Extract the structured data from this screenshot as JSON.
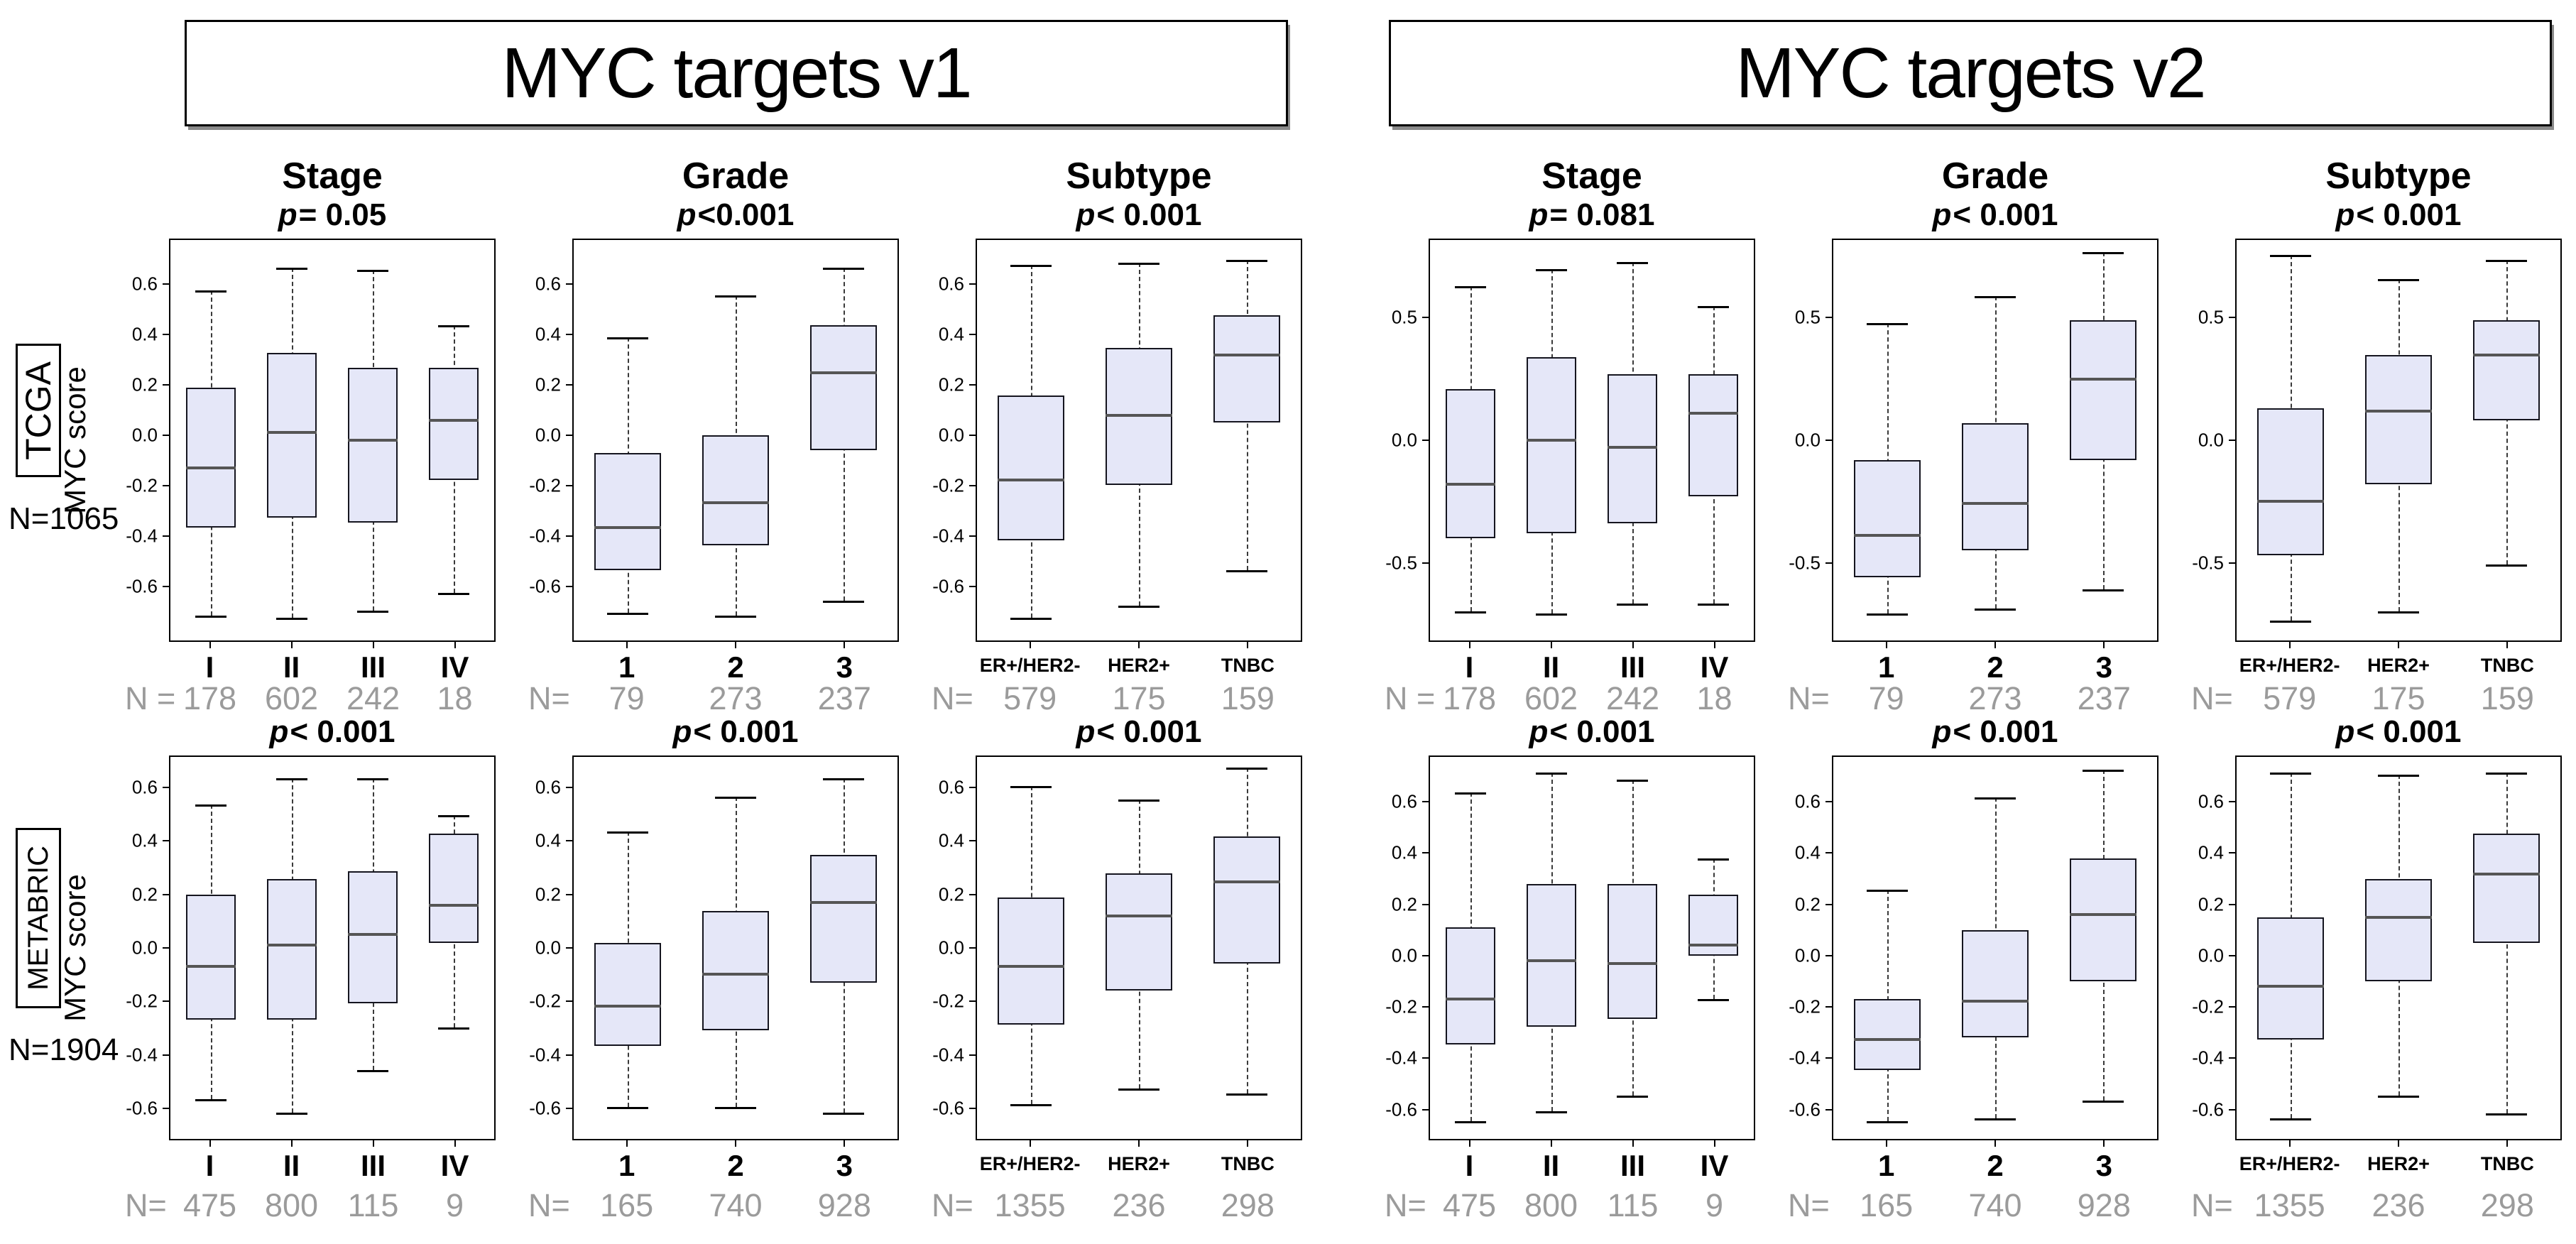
{
  "titles": {
    "v1": "MYC targets v1",
    "v2": "MYC targets v2"
  },
  "column_headers": [
    "Stage",
    "Grade",
    "Subtype",
    "Stage",
    "Grade",
    "Subtype"
  ],
  "rows": [
    {
      "cohort": "TCGA",
      "n_label": "N=1065",
      "ylabel": "MYC score"
    },
    {
      "cohort": "METABRIC",
      "n_label": "N=1904",
      "ylabel": "MYC score"
    }
  ],
  "colors": {
    "box_fill": "#e5e7f8",
    "box_border": "#15151f",
    "median": "#555555",
    "whisker": "#3a3a3a",
    "sample_size_text": "#9b9b9b",
    "text": "#000000"
  },
  "chart_data": [
    {
      "type": "box",
      "cohort": "TCGA",
      "gene_set": "MYC targets v1",
      "variable": "Stage",
      "p_label": "p = 0.05",
      "categories": [
        "I",
        "II",
        "III",
        "IV"
      ],
      "n_prefix": "N =",
      "n_values": [
        178,
        602,
        242,
        18
      ],
      "yticks": [
        "0.6",
        "0.4",
        "0.2",
        "0.0",
        "-0.2",
        "-0.4",
        "-0.6"
      ],
      "ylim": [
        -0.82,
        0.78
      ],
      "boxes": [
        {
          "lo": -0.72,
          "q1": -0.37,
          "med": -0.13,
          "q3": 0.19,
          "hi": 0.58
        },
        {
          "lo": -0.73,
          "q1": -0.33,
          "med": 0.01,
          "q3": 0.33,
          "hi": 0.67
        },
        {
          "lo": -0.7,
          "q1": -0.35,
          "med": -0.02,
          "q3": 0.27,
          "hi": 0.66
        },
        {
          "lo": -0.63,
          "q1": -0.18,
          "med": 0.06,
          "q3": 0.27,
          "hi": 0.44
        }
      ]
    },
    {
      "type": "box",
      "cohort": "TCGA",
      "gene_set": "MYC targets v1",
      "variable": "Grade",
      "p_label": "p<0.001",
      "categories": [
        "1",
        "2",
        "3"
      ],
      "n_prefix": "N=",
      "n_values": [
        79,
        273,
        237
      ],
      "yticks": [
        "0.6",
        "0.4",
        "0.2",
        "0.0",
        "-0.2",
        "-0.4",
        "-0.6"
      ],
      "ylim": [
        -0.82,
        0.78
      ],
      "boxes": [
        {
          "lo": -0.71,
          "q1": -0.54,
          "med": -0.37,
          "q3": -0.07,
          "hi": 0.39
        },
        {
          "lo": -0.72,
          "q1": -0.44,
          "med": -0.27,
          "q3": 0.0,
          "hi": 0.56
        },
        {
          "lo": -0.66,
          "q1": -0.06,
          "med": 0.25,
          "q3": 0.44,
          "hi": 0.67
        }
      ]
    },
    {
      "type": "box",
      "cohort": "TCGA",
      "gene_set": "MYC targets v1",
      "variable": "Subtype",
      "p_label": "p < 0.001",
      "categories": [
        "ER+/HER2-",
        "HER2+",
        "TNBC"
      ],
      "n_prefix": "N=",
      "n_values": [
        579,
        175,
        159
      ],
      "yticks": [
        "0.6",
        "0.4",
        "0.2",
        "0.0",
        "-0.2",
        "-0.4",
        "-0.6"
      ],
      "ylim": [
        -0.82,
        0.78
      ],
      "boxes": [
        {
          "lo": -0.73,
          "q1": -0.42,
          "med": -0.18,
          "q3": 0.16,
          "hi": 0.68
        },
        {
          "lo": -0.68,
          "q1": -0.2,
          "med": 0.08,
          "q3": 0.35,
          "hi": 0.69
        },
        {
          "lo": -0.54,
          "q1": 0.05,
          "med": 0.32,
          "q3": 0.48,
          "hi": 0.7
        }
      ]
    },
    {
      "type": "box",
      "cohort": "TCGA",
      "gene_set": "MYC targets v2",
      "variable": "Stage",
      "p_label": "p = 0.081",
      "categories": [
        "I",
        "II",
        "III",
        "IV"
      ],
      "n_prefix": "N =",
      "n_values": [
        178,
        602,
        242,
        18
      ],
      "yticks": [
        "0.5",
        "0.0",
        "-0.5"
      ],
      "ylim": [
        -0.82,
        0.82
      ],
      "boxes": [
        {
          "lo": -0.7,
          "q1": -0.4,
          "med": -0.18,
          "q3": 0.21,
          "hi": 0.63
        },
        {
          "lo": -0.71,
          "q1": -0.38,
          "med": 0.0,
          "q3": 0.34,
          "hi": 0.7
        },
        {
          "lo": -0.67,
          "q1": -0.34,
          "med": -0.03,
          "q3": 0.27,
          "hi": 0.73
        },
        {
          "lo": -0.67,
          "q1": -0.23,
          "med": 0.11,
          "q3": 0.27,
          "hi": 0.55
        }
      ]
    },
    {
      "type": "box",
      "cohort": "TCGA",
      "gene_set": "MYC targets v2",
      "variable": "Grade",
      "p_label": "p < 0.001",
      "categories": [
        "1",
        "2",
        "3"
      ],
      "n_prefix": "N=",
      "n_values": [
        79,
        273,
        237
      ],
      "yticks": [
        "0.5",
        "0.0",
        "-0.5"
      ],
      "ylim": [
        -0.82,
        0.82
      ],
      "boxes": [
        {
          "lo": -0.71,
          "q1": -0.56,
          "med": -0.39,
          "q3": -0.08,
          "hi": 0.48
        },
        {
          "lo": -0.69,
          "q1": -0.45,
          "med": -0.26,
          "q3": 0.07,
          "hi": 0.59
        },
        {
          "lo": -0.61,
          "q1": -0.08,
          "med": 0.25,
          "q3": 0.49,
          "hi": 0.77
        }
      ]
    },
    {
      "type": "box",
      "cohort": "TCGA",
      "gene_set": "MYC targets v2",
      "variable": "Subtype",
      "p_label": "p < 0.001",
      "categories": [
        "ER+/HER2-",
        "HER2+",
        "TNBC"
      ],
      "n_prefix": "N=",
      "n_values": [
        579,
        175,
        159
      ],
      "yticks": [
        "0.5",
        "0.0",
        "-0.5"
      ],
      "ylim": [
        -0.82,
        0.82
      ],
      "boxes": [
        {
          "lo": -0.74,
          "q1": -0.47,
          "med": -0.25,
          "q3": 0.13,
          "hi": 0.76
        },
        {
          "lo": -0.7,
          "q1": -0.18,
          "med": 0.12,
          "q3": 0.35,
          "hi": 0.66
        },
        {
          "lo": -0.51,
          "q1": 0.08,
          "med": 0.35,
          "q3": 0.49,
          "hi": 0.74
        }
      ]
    },
    {
      "type": "box",
      "cohort": "METABRIC",
      "gene_set": "MYC targets v1",
      "variable": "Stage",
      "p_label": "p < 0.001",
      "categories": [
        "I",
        "II",
        "III",
        "IV"
      ],
      "n_prefix": "N=",
      "n_values": [
        475,
        800,
        115,
        9
      ],
      "yticks": [
        "0.6",
        "0.4",
        "0.2",
        "0.0",
        "-0.2",
        "-0.4",
        "-0.6"
      ],
      "ylim": [
        -0.72,
        0.72
      ],
      "boxes": [
        {
          "lo": -0.57,
          "q1": -0.27,
          "med": -0.07,
          "q3": 0.2,
          "hi": 0.54
        },
        {
          "lo": -0.62,
          "q1": -0.27,
          "med": 0.01,
          "q3": 0.26,
          "hi": 0.64
        },
        {
          "lo": -0.46,
          "q1": -0.21,
          "med": 0.05,
          "q3": 0.29,
          "hi": 0.64
        },
        {
          "lo": -0.3,
          "q1": 0.02,
          "med": 0.16,
          "q3": 0.43,
          "hi": 0.5
        }
      ]
    },
    {
      "type": "box",
      "cohort": "METABRIC",
      "gene_set": "MYC targets v1",
      "variable": "Grade",
      "p_label": "p < 0.001",
      "categories": [
        "1",
        "2",
        "3"
      ],
      "n_prefix": "N=",
      "n_values": [
        165,
        740,
        928
      ],
      "yticks": [
        "0.6",
        "0.4",
        "0.2",
        "0.0",
        "-0.2",
        "-0.4",
        "-0.6"
      ],
      "ylim": [
        -0.72,
        0.72
      ],
      "boxes": [
        {
          "lo": -0.6,
          "q1": -0.37,
          "med": -0.22,
          "q3": 0.02,
          "hi": 0.44
        },
        {
          "lo": -0.6,
          "q1": -0.31,
          "med": -0.1,
          "q3": 0.14,
          "hi": 0.57
        },
        {
          "lo": -0.62,
          "q1": -0.13,
          "med": 0.17,
          "q3": 0.35,
          "hi": 0.64
        }
      ]
    },
    {
      "type": "box",
      "cohort": "METABRIC",
      "gene_set": "MYC targets v1",
      "variable": "Subtype",
      "p_label": "p < 0.001",
      "categories": [
        "ER+/HER2-",
        "HER2+",
        "TNBC"
      ],
      "n_prefix": "N=",
      "n_values": [
        1355,
        236,
        298
      ],
      "yticks": [
        "0.6",
        "0.4",
        "0.2",
        "0.0",
        "-0.2",
        "-0.4",
        "-0.6"
      ],
      "ylim": [
        -0.72,
        0.72
      ],
      "boxes": [
        {
          "lo": -0.59,
          "q1": -0.29,
          "med": -0.07,
          "q3": 0.19,
          "hi": 0.61
        },
        {
          "lo": -0.53,
          "q1": -0.16,
          "med": 0.12,
          "q3": 0.28,
          "hi": 0.56
        },
        {
          "lo": -0.55,
          "q1": -0.06,
          "med": 0.25,
          "q3": 0.42,
          "hi": 0.68
        }
      ]
    },
    {
      "type": "box",
      "cohort": "METABRIC",
      "gene_set": "MYC targets v2",
      "variable": "Stage",
      "p_label": "p < 0.001",
      "categories": [
        "I",
        "II",
        "III",
        "IV"
      ],
      "n_prefix": "N=",
      "n_values": [
        475,
        800,
        115,
        9
      ],
      "yticks": [
        "0.6",
        "0.4",
        "0.2",
        "0.0",
        "-0.2",
        "-0.4",
        "-0.6"
      ],
      "ylim": [
        -0.72,
        0.78
      ],
      "boxes": [
        {
          "lo": -0.65,
          "q1": -0.35,
          "med": -0.17,
          "q3": 0.11,
          "hi": 0.64
        },
        {
          "lo": -0.61,
          "q1": -0.28,
          "med": -0.02,
          "q3": 0.28,
          "hi": 0.72
        },
        {
          "lo": -0.55,
          "q1": -0.25,
          "med": -0.03,
          "q3": 0.28,
          "hi": 0.69
        },
        {
          "lo": -0.17,
          "q1": 0.0,
          "med": 0.04,
          "q3": 0.24,
          "hi": 0.38
        }
      ]
    },
    {
      "type": "box",
      "cohort": "METABRIC",
      "gene_set": "MYC targets v2",
      "variable": "Grade",
      "p_label": "p < 0.001",
      "categories": [
        "1",
        "2",
        "3"
      ],
      "n_prefix": "N=",
      "n_values": [
        165,
        740,
        928
      ],
      "yticks": [
        "0.6",
        "0.4",
        "0.2",
        "0.0",
        "-0.2",
        "-0.4",
        "-0.6"
      ],
      "ylim": [
        -0.72,
        0.78
      ],
      "boxes": [
        {
          "lo": -0.65,
          "q1": -0.45,
          "med": -0.33,
          "q3": -0.17,
          "hi": 0.26
        },
        {
          "lo": -0.64,
          "q1": -0.32,
          "med": -0.18,
          "q3": 0.1,
          "hi": 0.62
        },
        {
          "lo": -0.57,
          "q1": -0.1,
          "med": 0.16,
          "q3": 0.38,
          "hi": 0.73
        }
      ]
    },
    {
      "type": "box",
      "cohort": "METABRIC",
      "gene_set": "MYC targets v2",
      "variable": "Subtype",
      "p_label": "p < 0.001",
      "categories": [
        "ER+/HER2-",
        "HER2+",
        "TNBC"
      ],
      "n_prefix": "N=",
      "n_values": [
        1355,
        236,
        298
      ],
      "yticks": [
        "0.6",
        "0.4",
        "0.2",
        "0.0",
        "-0.2",
        "-0.4",
        "-0.6"
      ],
      "ylim": [
        -0.72,
        0.78
      ],
      "boxes": [
        {
          "lo": -0.64,
          "q1": -0.33,
          "med": -0.12,
          "q3": 0.15,
          "hi": 0.72
        },
        {
          "lo": -0.55,
          "q1": -0.1,
          "med": 0.15,
          "q3": 0.3,
          "hi": 0.71
        },
        {
          "lo": -0.62,
          "q1": 0.05,
          "med": 0.32,
          "q3": 0.48,
          "hi": 0.72
        }
      ]
    }
  ]
}
